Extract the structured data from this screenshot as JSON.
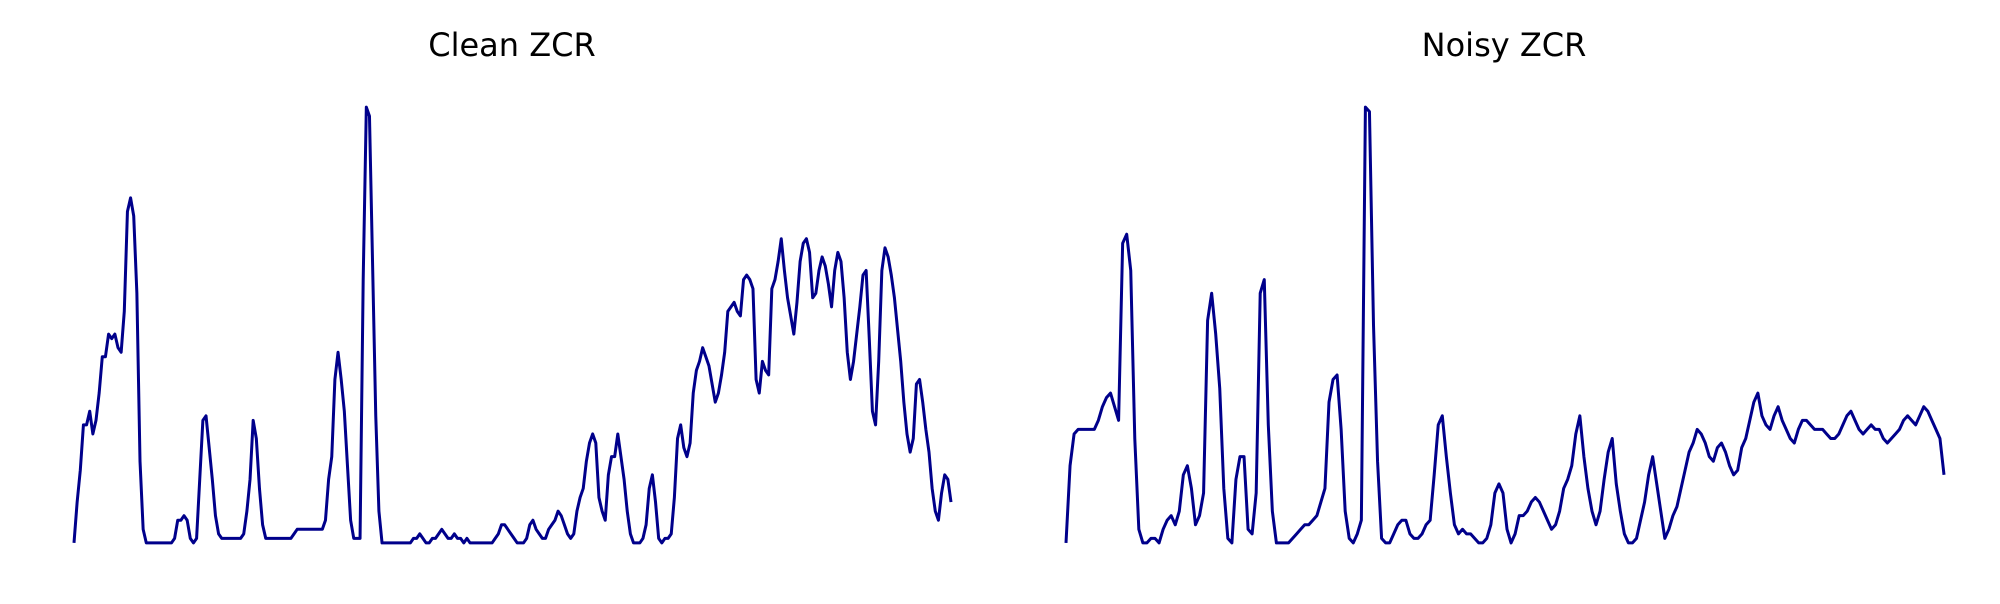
{
  "chart_data": [
    {
      "type": "line",
      "title": "Clean ZCR",
      "axes_visible": false,
      "grid": false,
      "line_color": "#00008B",
      "ylim": [
        0,
        1
      ],
      "values": [
        0.02,
        0.11,
        0.18,
        0.28,
        0.28,
        0.31,
        0.26,
        0.29,
        0.35,
        0.43,
        0.43,
        0.48,
        0.47,
        0.48,
        0.45,
        0.44,
        0.53,
        0.75,
        0.78,
        0.74,
        0.57,
        0.2,
        0.05,
        0.02,
        0.02,
        0.02,
        0.02,
        0.02,
        0.02,
        0.02,
        0.02,
        0.02,
        0.03,
        0.07,
        0.07,
        0.08,
        0.07,
        0.03,
        0.02,
        0.03,
        0.16,
        0.29,
        0.3,
        0.23,
        0.16,
        0.08,
        0.04,
        0.03,
        0.03,
        0.03,
        0.03,
        0.03,
        0.03,
        0.03,
        0.04,
        0.09,
        0.16,
        0.29,
        0.25,
        0.14,
        0.06,
        0.03,
        0.03,
        0.03,
        0.03,
        0.03,
        0.03,
        0.03,
        0.03,
        0.03,
        0.04,
        0.05,
        0.05,
        0.05,
        0.05,
        0.05,
        0.05,
        0.05,
        0.05,
        0.05,
        0.07,
        0.16,
        0.21,
        0.38,
        0.44,
        0.38,
        0.31,
        0.19,
        0.07,
        0.03,
        0.03,
        0.03,
        0.6,
        0.98,
        0.96,
        0.63,
        0.3,
        0.09,
        0.02,
        0.02,
        0.02,
        0.02,
        0.02,
        0.02,
        0.02,
        0.02,
        0.02,
        0.02,
        0.03,
        0.03,
        0.04,
        0.03,
        0.02,
        0.02,
        0.03,
        0.03,
        0.04,
        0.05,
        0.04,
        0.03,
        0.03,
        0.04,
        0.03,
        0.03,
        0.02,
        0.03,
        0.02,
        0.02,
        0.02,
        0.02,
        0.02,
        0.02,
        0.02,
        0.02,
        0.03,
        0.04,
        0.06,
        0.06,
        0.05,
        0.04,
        0.03,
        0.02,
        0.02,
        0.02,
        0.03,
        0.06,
        0.07,
        0.05,
        0.04,
        0.03,
        0.03,
        0.05,
        0.06,
        0.07,
        0.09,
        0.08,
        0.06,
        0.04,
        0.03,
        0.04,
        0.09,
        0.12,
        0.14,
        0.2,
        0.24,
        0.26,
        0.24,
        0.12,
        0.09,
        0.07,
        0.17,
        0.21,
        0.21,
        0.26,
        0.21,
        0.16,
        0.09,
        0.04,
        0.02,
        0.02,
        0.02,
        0.03,
        0.06,
        0.14,
        0.17,
        0.11,
        0.03,
        0.02,
        0.03,
        0.03,
        0.04,
        0.12,
        0.25,
        0.28,
        0.23,
        0.21,
        0.24,
        0.35,
        0.4,
        0.42,
        0.45,
        0.43,
        0.41,
        0.37,
        0.33,
        0.35,
        0.39,
        0.44,
        0.53,
        0.54,
        0.55,
        0.53,
        0.52,
        0.6,
        0.61,
        0.6,
        0.58,
        0.38,
        0.35,
        0.42,
        0.4,
        0.39,
        0.58,
        0.6,
        0.64,
        0.69,
        0.62,
        0.56,
        0.52,
        0.48,
        0.55,
        0.64,
        0.68,
        0.69,
        0.66,
        0.56,
        0.57,
        0.62,
        0.65,
        0.63,
        0.59,
        0.54,
        0.62,
        0.66,
        0.64,
        0.56,
        0.44,
        0.38,
        0.42,
        0.48,
        0.54,
        0.61,
        0.62,
        0.47,
        0.31,
        0.28,
        0.42,
        0.62,
        0.67,
        0.65,
        0.61,
        0.56,
        0.49,
        0.42,
        0.33,
        0.26,
        0.22,
        0.25,
        0.37,
        0.38,
        0.33,
        0.27,
        0.22,
        0.14,
        0.09,
        0.07,
        0.13,
        0.17,
        0.16,
        0.11
      ]
    },
    {
      "type": "line",
      "title": "Noisy ZCR",
      "axes_visible": false,
      "grid": false,
      "line_color": "#00008B",
      "ylim": [
        0,
        1
      ],
      "values": [
        0.02,
        0.19,
        0.26,
        0.27,
        0.27,
        0.27,
        0.27,
        0.27,
        0.29,
        0.32,
        0.34,
        0.35,
        0.32,
        0.29,
        0.68,
        0.7,
        0.62,
        0.25,
        0.05,
        0.02,
        0.02,
        0.03,
        0.03,
        0.02,
        0.05,
        0.07,
        0.08,
        0.06,
        0.09,
        0.17,
        0.19,
        0.14,
        0.06,
        0.08,
        0.13,
        0.51,
        0.57,
        0.48,
        0.36,
        0.14,
        0.03,
        0.02,
        0.16,
        0.21,
        0.21,
        0.05,
        0.04,
        0.13,
        0.57,
        0.6,
        0.28,
        0.09,
        0.02,
        0.02,
        0.02,
        0.02,
        0.03,
        0.04,
        0.05,
        0.06,
        0.06,
        0.07,
        0.08,
        0.11,
        0.14,
        0.33,
        0.38,
        0.39,
        0.27,
        0.09,
        0.03,
        0.02,
        0.04,
        0.07,
        0.98,
        0.97,
        0.5,
        0.2,
        0.03,
        0.02,
        0.02,
        0.04,
        0.06,
        0.07,
        0.07,
        0.04,
        0.03,
        0.03,
        0.04,
        0.06,
        0.07,
        0.17,
        0.28,
        0.3,
        0.21,
        0.13,
        0.06,
        0.04,
        0.05,
        0.04,
        0.04,
        0.03,
        0.02,
        0.02,
        0.03,
        0.06,
        0.13,
        0.15,
        0.13,
        0.05,
        0.02,
        0.04,
        0.08,
        0.08,
        0.09,
        0.11,
        0.12,
        0.11,
        0.09,
        0.07,
        0.05,
        0.06,
        0.09,
        0.14,
        0.16,
        0.19,
        0.26,
        0.3,
        0.21,
        0.14,
        0.09,
        0.06,
        0.09,
        0.16,
        0.22,
        0.25,
        0.15,
        0.09,
        0.04,
        0.02,
        0.02,
        0.03,
        0.07,
        0.11,
        0.17,
        0.21,
        0.15,
        0.09,
        0.03,
        0.05,
        0.08,
        0.1,
        0.14,
        0.18,
        0.22,
        0.24,
        0.27,
        0.26,
        0.24,
        0.21,
        0.2,
        0.23,
        0.24,
        0.22,
        0.19,
        0.17,
        0.18,
        0.23,
        0.25,
        0.29,
        0.33,
        0.35,
        0.3,
        0.28,
        0.27,
        0.3,
        0.32,
        0.29,
        0.27,
        0.25,
        0.24,
        0.27,
        0.29,
        0.29,
        0.28,
        0.27,
        0.27,
        0.27,
        0.26,
        0.25,
        0.25,
        0.26,
        0.28,
        0.3,
        0.31,
        0.29,
        0.27,
        0.26,
        0.27,
        0.28,
        0.27,
        0.27,
        0.25,
        0.24,
        0.25,
        0.26,
        0.27,
        0.29,
        0.3,
        0.29,
        0.28,
        0.3,
        0.32,
        0.31,
        0.29,
        0.27,
        0.25,
        0.17
      ]
    }
  ]
}
